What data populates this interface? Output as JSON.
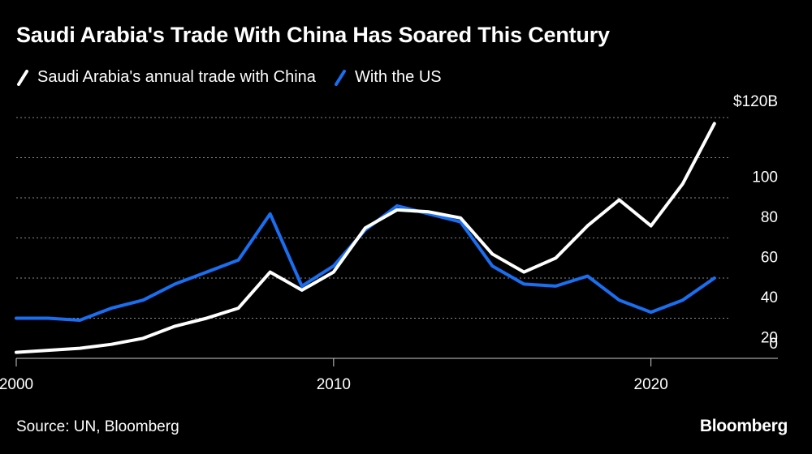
{
  "chart_data": {
    "type": "line",
    "title": "Saudi Arabia's Trade With China Has Soared This Century",
    "x": [
      2000,
      2001,
      2002,
      2003,
      2004,
      2005,
      2006,
      2007,
      2008,
      2009,
      2010,
      2011,
      2012,
      2013,
      2014,
      2015,
      2016,
      2017,
      2018,
      2019,
      2020,
      2021,
      2022
    ],
    "series": [
      {
        "name": "Saudi Arabia's annual trade with China",
        "color": "#ffffff",
        "values": [
          3,
          4,
          5,
          7,
          10,
          16,
          20,
          25,
          43,
          34,
          43,
          65,
          74,
          73,
          70,
          52,
          43,
          50,
          66,
          79,
          66,
          87,
          117
        ]
      },
      {
        "name": "With the US",
        "color": "#1a6ef0",
        "values": [
          20,
          20,
          19,
          25,
          29,
          37,
          43,
          49,
          72,
          36,
          46,
          64,
          76,
          72,
          68,
          46,
          37,
          36,
          41,
          29,
          23,
          29,
          40
        ]
      }
    ],
    "xlim": [
      2000,
      2024
    ],
    "ylim": [
      0,
      120
    ],
    "x_ticks": [
      2000,
      2010,
      2020
    ],
    "y_ticks": [
      {
        "value": 0,
        "label": "0"
      },
      {
        "value": 20,
        "label": "20"
      },
      {
        "value": 40,
        "label": "40"
      },
      {
        "value": 60,
        "label": "60"
      },
      {
        "value": 80,
        "label": "80"
      },
      {
        "value": 100,
        "label": "100"
      },
      {
        "value": 120,
        "label": "$120B"
      }
    ],
    "grid": true,
    "legend_position": "top-left"
  },
  "footer": {
    "source": "Source: UN, Bloomberg",
    "brand": "Bloomberg"
  }
}
